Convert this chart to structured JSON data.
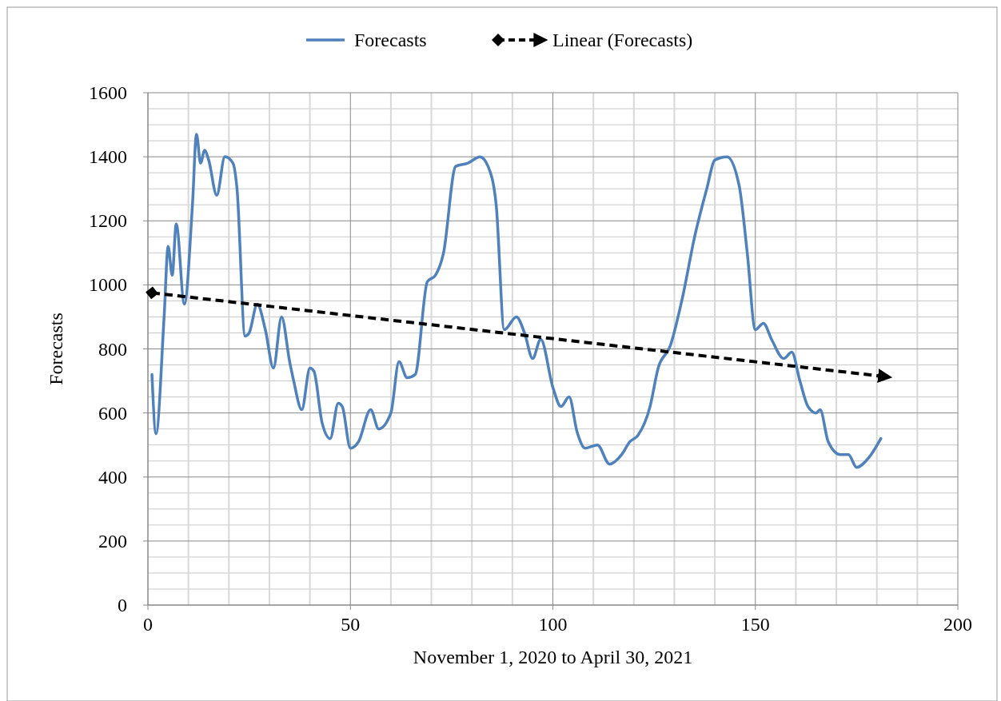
{
  "chart_data": {
    "type": "line",
    "xlabel": "November 1, 2020 to April 30, 2021",
    "ylabel": "Forecasts",
    "xlim": [
      0,
      200
    ],
    "xticks": [
      0,
      50,
      100,
      150,
      200
    ],
    "ylim": [
      0,
      1600
    ],
    "yticks": [
      0,
      200,
      400,
      600,
      800,
      1000,
      1200,
      1400,
      1600
    ],
    "grid": true,
    "legend": "top",
    "series": [
      {
        "name": "Forecasts",
        "color": "#4f81bd",
        "line_style": "solid",
        "x": [
          1,
          2,
          4,
          5,
          6,
          7,
          9,
          11,
          12,
          13,
          14,
          15,
          17,
          19,
          21,
          22,
          24,
          25,
          27,
          29,
          31,
          33,
          35,
          36,
          38,
          40,
          41,
          43,
          45,
          47,
          48,
          50,
          52,
          55,
          57,
          60,
          62,
          64,
          66,
          69,
          71,
          73,
          76,
          79,
          82,
          84,
          86,
          88,
          91,
          93,
          95,
          97,
          100,
          102,
          104,
          106,
          108,
          111,
          114,
          117,
          119,
          121,
          124,
          126,
          129,
          132,
          135,
          138,
          140,
          143,
          146,
          148,
          150,
          152,
          154,
          157,
          159,
          161,
          163,
          165,
          166,
          168,
          171,
          173,
          175,
          178,
          181
        ],
        "values": [
          720,
          535,
          900,
          1120,
          1030,
          1190,
          940,
          1250,
          1470,
          1380,
          1420,
          1390,
          1280,
          1400,
          1380,
          1300,
          840,
          850,
          940,
          860,
          740,
          900,
          760,
          700,
          610,
          740,
          730,
          570,
          520,
          630,
          620,
          490,
          510,
          610,
          550,
          600,
          760,
          710,
          720,
          1010,
          1030,
          1100,
          1370,
          1380,
          1400,
          1370,
          1250,
          860,
          900,
          850,
          770,
          830,
          680,
          620,
          650,
          540,
          490,
          500,
          440,
          470,
          510,
          530,
          620,
          740,
          810,
          960,
          1150,
          1300,
          1390,
          1400,
          1310,
          1100,
          860,
          880,
          830,
          770,
          790,
          700,
          620,
          600,
          610,
          510,
          470,
          470,
          430,
          460,
          520
        ]
      },
      {
        "name": "Linear (Forecasts)",
        "color": "#000000",
        "line_style": "dashed",
        "x": [
          1,
          181
        ],
        "values": [
          975,
          715
        ]
      }
    ]
  }
}
